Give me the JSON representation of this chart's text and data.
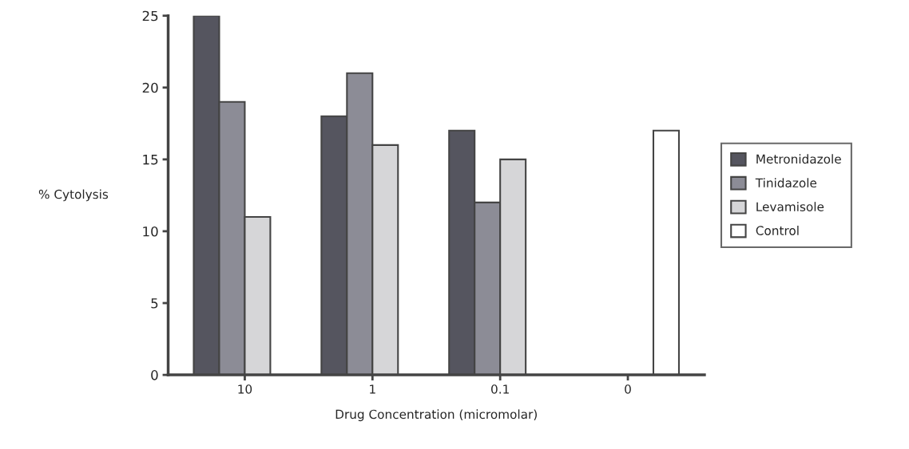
{
  "chart_data": {
    "type": "bar",
    "xlabel": "Drug Concentration (micromolar)",
    "ylabel": "% Cytolysis",
    "categories": [
      "10",
      "1",
      "0.1",
      "0"
    ],
    "series": [
      {
        "name": "Metronidazole",
        "color": "#55555f",
        "values": [
          25,
          18,
          17,
          null
        ]
      },
      {
        "name": "Tinidazole",
        "color": "#8c8c96",
        "values": [
          19,
          21,
          12,
          null
        ]
      },
      {
        "name": "Levamisole",
        "color": "#d6d6d8",
        "values": [
          11,
          16,
          15,
          null
        ]
      },
      {
        "name": "Control",
        "color": "#ffffff",
        "values": [
          null,
          null,
          null,
          17
        ]
      }
    ],
    "ylim": [
      0,
      25
    ],
    "yticks": [
      0,
      5,
      10,
      15,
      20,
      25
    ],
    "grid": false,
    "legend": "right"
  }
}
